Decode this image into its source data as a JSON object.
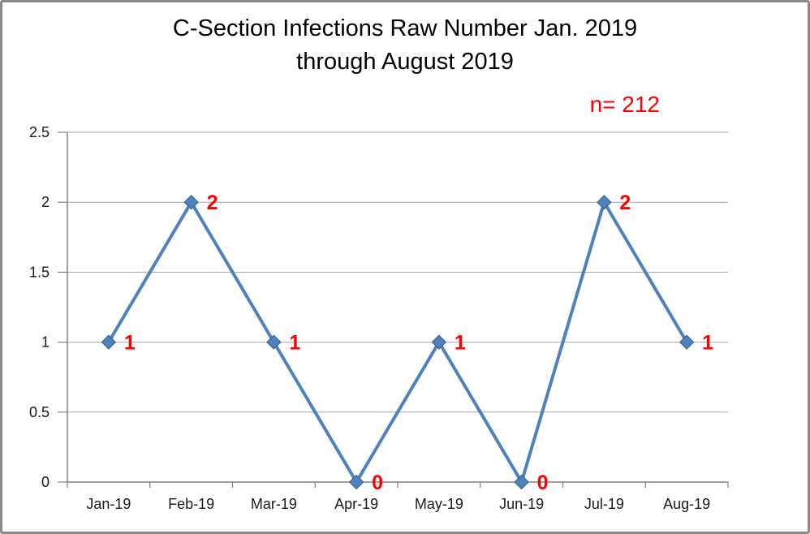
{
  "title": {
    "line1": "C-Section Infections Raw Number Jan. 2019",
    "line2": "through August 2019"
  },
  "annotation": {
    "n_label": "n= 212",
    "color": "#ff0000"
  },
  "chart_data": {
    "type": "line",
    "title": "C-Section Infections Raw Number Jan. 2019 through August 2019",
    "categories": [
      "Jan-19",
      "Feb-19",
      "Mar-19",
      "Apr-19",
      "May-19",
      "Jun-19",
      "Jul-19",
      "Aug-19"
    ],
    "series": [
      {
        "name": "C-Section Infections",
        "values": [
          1,
          2,
          1,
          0,
          1,
          0,
          2,
          1
        ]
      }
    ],
    "data_labels": [
      "1",
      "2",
      "1",
      "0",
      "1",
      "0",
      "2",
      "1"
    ],
    "xlabel": "",
    "ylabel": "",
    "ylim": [
      0,
      2.5
    ],
    "ytick_step": 0.5,
    "ytick_labels": [
      "0",
      "0.5",
      "1",
      "1.5",
      "2",
      "2.5"
    ],
    "grid": true,
    "legend_position": "none",
    "line_color": "#4f81bd",
    "marker": "diamond",
    "marker_border_color": "#385d8a",
    "data_label_color": "#ff0000",
    "gridline_color": "#a6a6a6",
    "axis_color": "#808080",
    "tick_label_color": "#1a1a1a"
  }
}
